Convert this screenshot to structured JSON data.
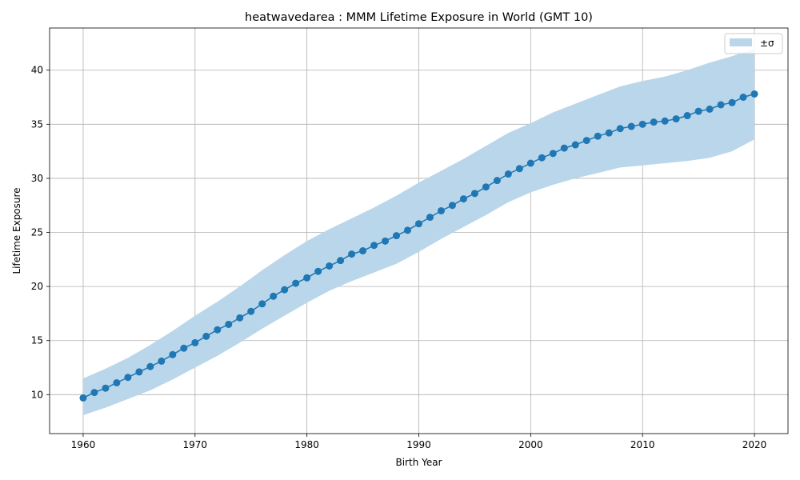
{
  "chart_data": {
    "type": "line",
    "title": "heatwavedarea : MMM Lifetime Exposure in World (GMT 10)",
    "xlabel": "Birth Year",
    "ylabel": "Lifetime Exposure",
    "xlim": [
      1957,
      2023
    ],
    "ylim": [
      6.4,
      43.9
    ],
    "xticks": [
      1960,
      1970,
      1980,
      1990,
      2000,
      2010,
      2020
    ],
    "yticks": [
      10,
      15,
      20,
      25,
      30,
      35,
      40
    ],
    "grid": true,
    "legend": {
      "position": "top-right",
      "entries": [
        "±σ"
      ]
    },
    "colors": {
      "line": "#1f77b4",
      "band": "#bad6ea",
      "grid": "#b0b0b0"
    },
    "series": [
      {
        "name": "MMM",
        "x": [
          1960,
          1961,
          1962,
          1963,
          1964,
          1965,
          1966,
          1967,
          1968,
          1969,
          1970,
          1971,
          1972,
          1973,
          1974,
          1975,
          1976,
          1977,
          1978,
          1979,
          1980,
          1981,
          1982,
          1983,
          1984,
          1985,
          1986,
          1987,
          1988,
          1989,
          1990,
          1991,
          1992,
          1993,
          1994,
          1995,
          1996,
          1997,
          1998,
          1999,
          2000,
          2001,
          2002,
          2003,
          2004,
          2005,
          2006,
          2007,
          2008,
          2009,
          2010,
          2011,
          2012,
          2013,
          2014,
          2015,
          2016,
          2017,
          2018,
          2019,
          2020
        ],
        "y": [
          9.7,
          10.2,
          10.6,
          11.1,
          11.6,
          12.1,
          12.6,
          13.1,
          13.7,
          14.3,
          14.8,
          15.4,
          16.0,
          16.5,
          17.1,
          17.7,
          18.4,
          19.1,
          19.7,
          20.3,
          20.8,
          21.4,
          21.9,
          22.4,
          23.0,
          23.3,
          23.8,
          24.2,
          24.7,
          25.2,
          25.8,
          26.4,
          27.0,
          27.5,
          28.1,
          28.6,
          29.2,
          29.8,
          30.4,
          30.9,
          31.4,
          31.9,
          32.3,
          32.8,
          33.1,
          33.5,
          33.9,
          34.2,
          34.6,
          34.8,
          35.0,
          35.2,
          35.3,
          35.5,
          35.8,
          36.2,
          36.4,
          36.8,
          37.0,
          37.5,
          37.8
        ]
      }
    ],
    "band": {
      "name": "±σ",
      "x": [
        1960,
        1962,
        1964,
        1966,
        1968,
        1970,
        1972,
        1974,
        1976,
        1978,
        1980,
        1982,
        1984,
        1986,
        1988,
        1990,
        1992,
        1994,
        1996,
        1998,
        2000,
        2002,
        2004,
        2006,
        2008,
        2010,
        2012,
        2014,
        2016,
        2018,
        2020
      ],
      "upper": [
        11.5,
        12.4,
        13.4,
        14.6,
        15.9,
        17.3,
        18.6,
        20.0,
        21.5,
        22.9,
        24.2,
        25.3,
        26.3,
        27.3,
        28.4,
        29.6,
        30.7,
        31.8,
        33.0,
        34.2,
        35.1,
        36.1,
        36.9,
        37.7,
        38.5,
        39.0,
        39.4,
        40.0,
        40.7,
        41.3,
        42.0
      ],
      "lower": [
        8.1,
        8.8,
        9.6,
        10.4,
        11.4,
        12.5,
        13.6,
        14.8,
        16.1,
        17.3,
        18.5,
        19.6,
        20.5,
        21.3,
        22.1,
        23.2,
        24.4,
        25.5,
        26.6,
        27.8,
        28.7,
        29.4,
        30.0,
        30.5,
        31.0,
        31.2,
        31.4,
        31.6,
        31.9,
        32.5,
        33.6
      ]
    }
  }
}
